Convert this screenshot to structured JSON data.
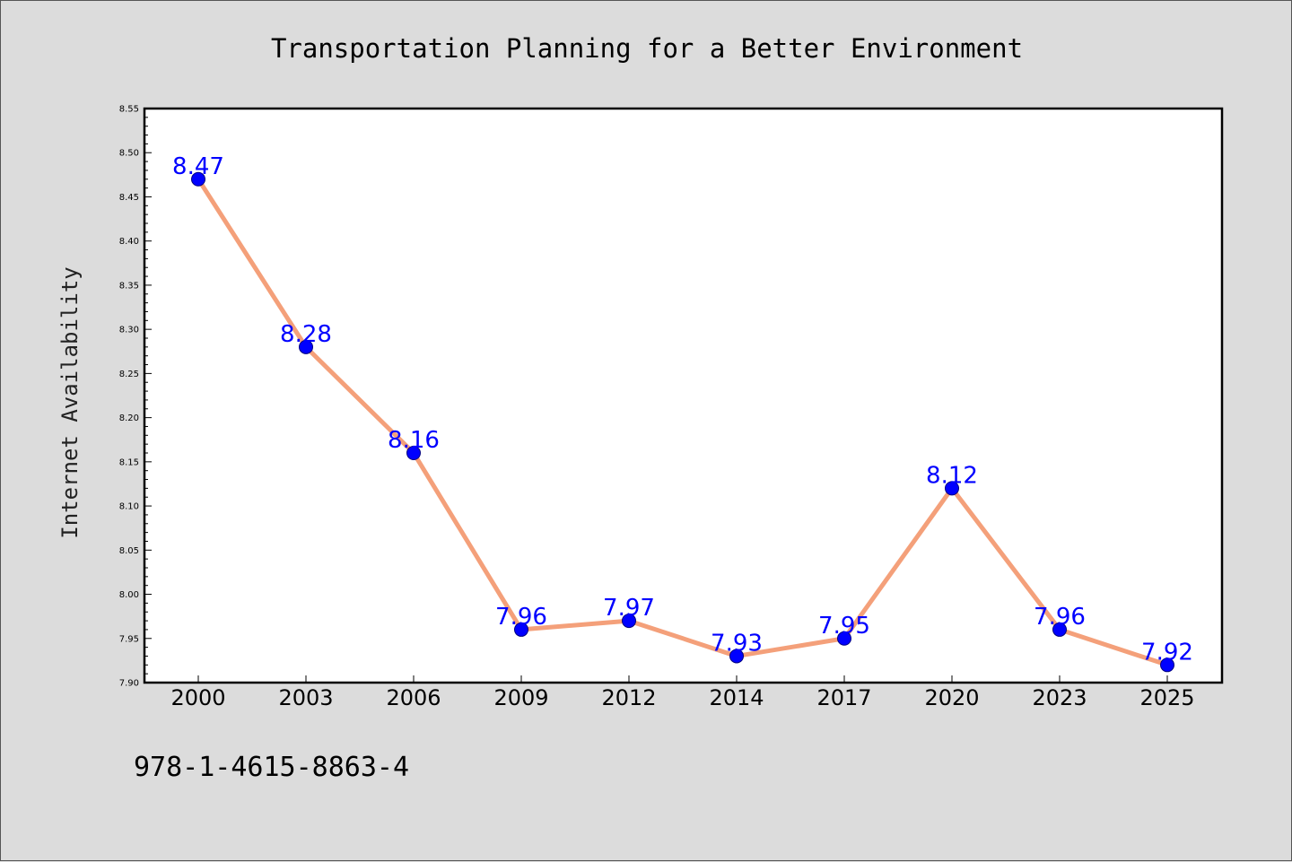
{
  "chart_data": {
    "type": "line",
    "title": "Transportation Planning for a Better Environment",
    "xlabel": "",
    "ylabel": "Internet Availability",
    "categories": [
      "2000",
      "2003",
      "2006",
      "2009",
      "2012",
      "2014",
      "2017",
      "2020",
      "2023",
      "2025"
    ],
    "series": [
      {
        "values": [
          8.47,
          8.28,
          8.16,
          7.96,
          7.97,
          7.93,
          7.95,
          8.12,
          7.96,
          7.92
        ],
        "data_labels": [
          "8.47",
          "8.28",
          "8.16",
          "7.96",
          "7.97",
          "7.93",
          "7.95",
          "8.12",
          "7.96",
          "7.92"
        ]
      }
    ],
    "ylim": [
      7.9,
      8.55
    ],
    "yticks": [
      "7.90",
      "7.95",
      "8.00",
      "8.05",
      "8.10",
      "8.15",
      "8.20",
      "8.25",
      "8.30",
      "8.35",
      "8.40",
      "8.45",
      "8.50",
      "8.55"
    ],
    "grid": false,
    "legend": "none",
    "colors": {
      "line": "#f4a07a",
      "marker": "#0000ff",
      "labels": "#0000ff",
      "background": "#dcdcdc",
      "plot_background": "#ffffff"
    }
  },
  "footer_text": "978-1-4615-8863-4"
}
